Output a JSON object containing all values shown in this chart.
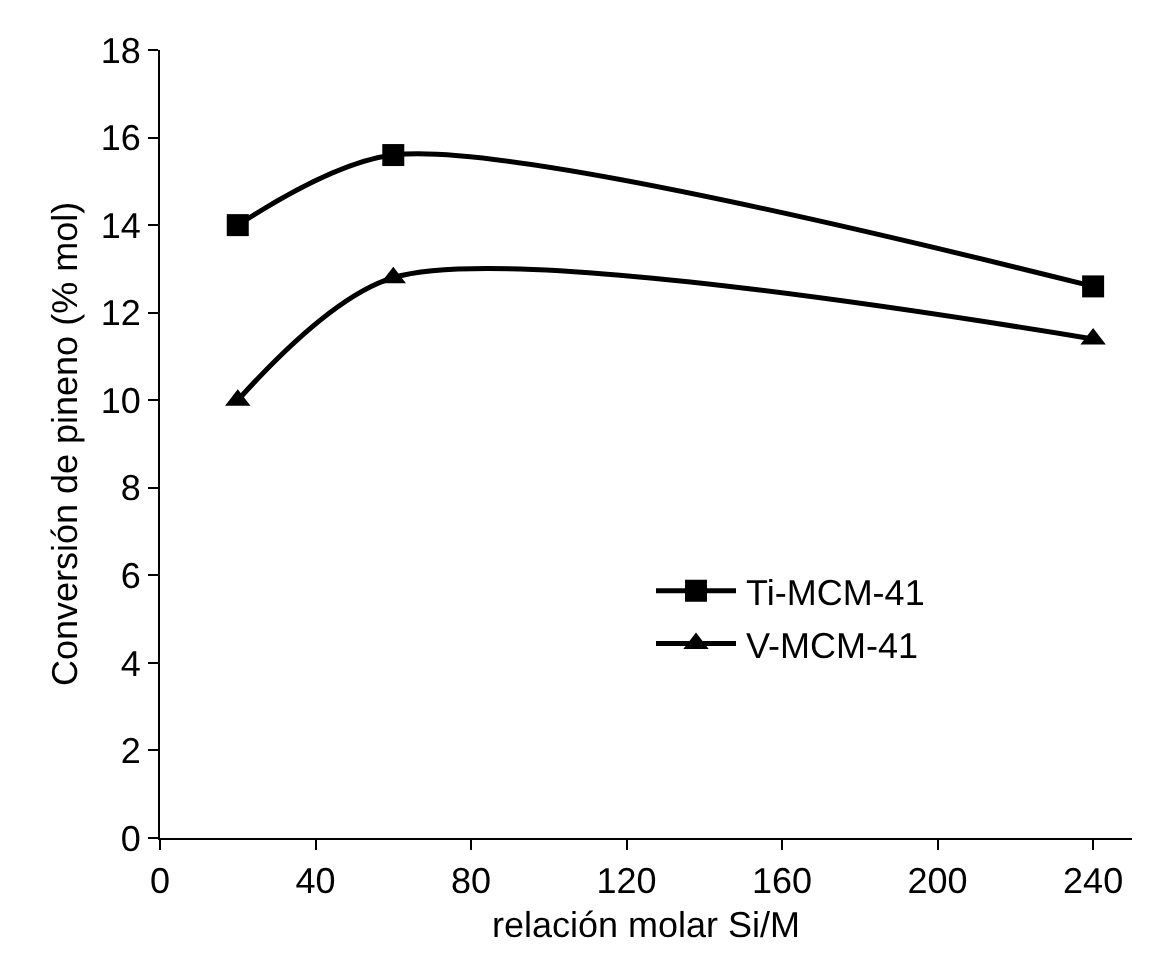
{
  "chart_data": {
    "type": "line",
    "xlabel": "relación molar Si/M",
    "ylabel": "Conversión de pineno (% mol)",
    "x": [
      20,
      60,
      240
    ],
    "series": [
      {
        "name": "Ti-MCM-41",
        "color": "#000000",
        "marker": "square",
        "values": [
          14,
          15.6,
          12.6
        ]
      },
      {
        "name": "V-MCM-41",
        "color": "#000000",
        "marker": "triangle",
        "values": [
          10,
          12.8,
          11.4
        ]
      }
    ],
    "xlim": [
      0,
      250
    ],
    "xticks": [
      0,
      40,
      80,
      120,
      160,
      200,
      240
    ],
    "ylim": [
      0,
      18
    ],
    "yticks": [
      0,
      2,
      4,
      6,
      8,
      10,
      12,
      14,
      16,
      18
    ],
    "grid": false,
    "legend": "bottom right",
    "line_style": "solid"
  }
}
